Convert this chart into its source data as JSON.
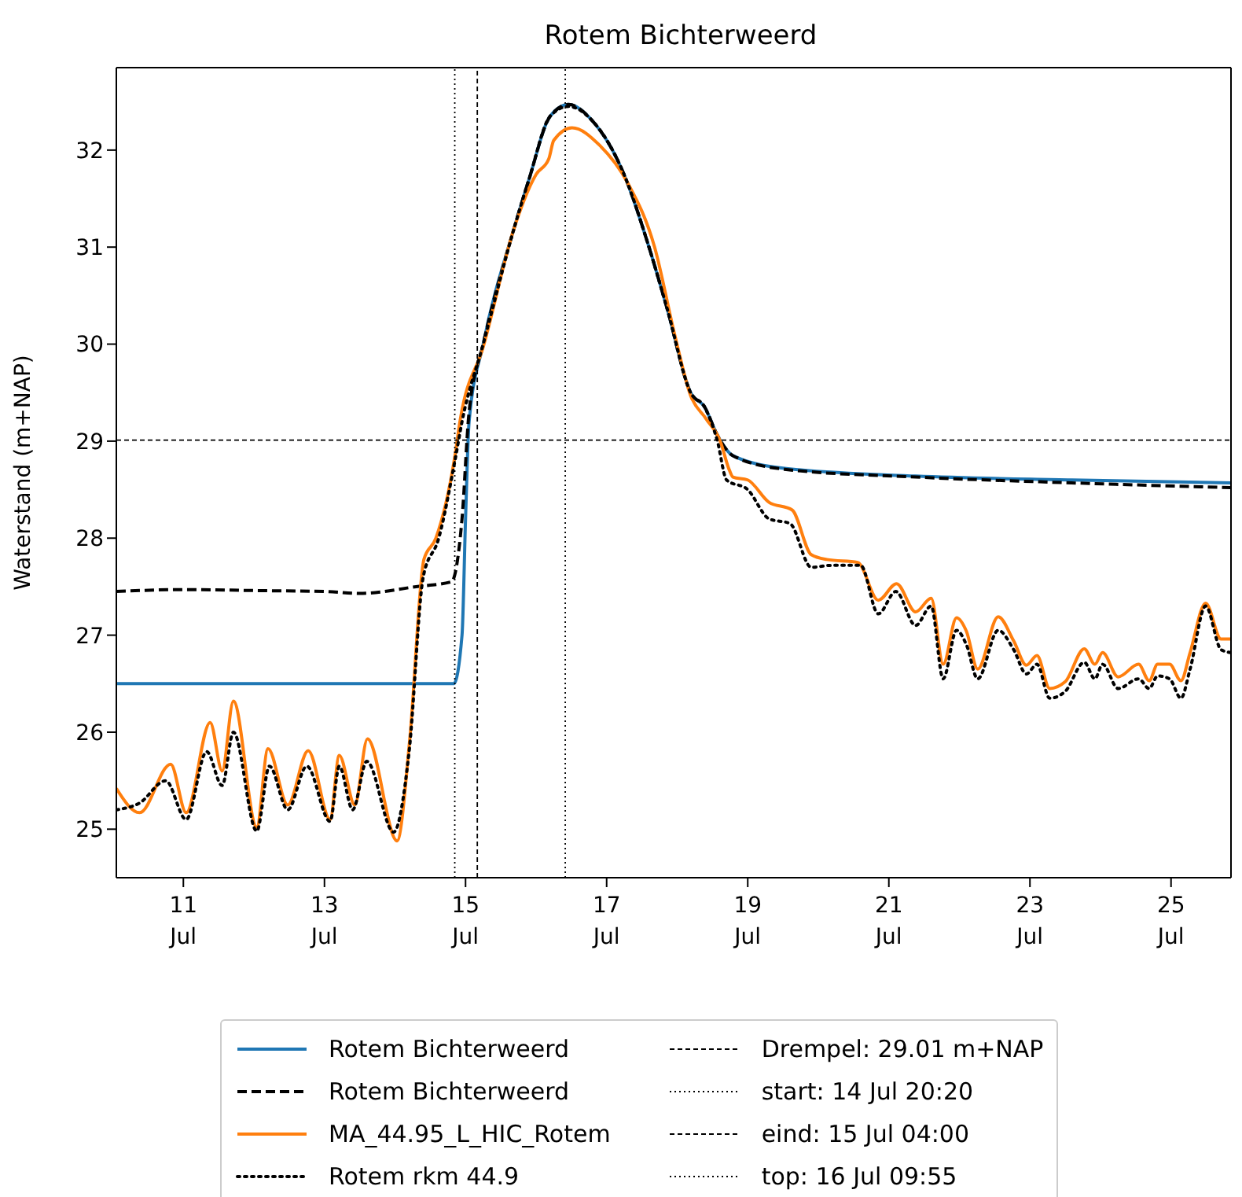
{
  "chart_data": {
    "type": "line",
    "title": "Rotem Bichterweerd",
    "ylabel": "Waterstand (m+NAP)",
    "xlim": [
      "--07-10T01:12",
      "--07-25T20:24"
    ],
    "ylim": [
      24.5,
      32.85
    ],
    "xticks": [
      {
        "value": "--07-11",
        "label": "11\nJul"
      },
      {
        "value": "--07-13",
        "label": "13\nJul"
      },
      {
        "value": "--07-15",
        "label": "15\nJul"
      },
      {
        "value": "--07-17",
        "label": "17\nJul"
      },
      {
        "value": "--07-19",
        "label": "19\nJul"
      },
      {
        "value": "--07-21",
        "label": "21\nJul"
      },
      {
        "value": "--07-23",
        "label": "23\nJul"
      },
      {
        "value": "--07-25",
        "label": "25\nJul"
      }
    ],
    "yticks": [
      25,
      26,
      27,
      28,
      29,
      30,
      31,
      32
    ],
    "grid": false,
    "legend": "bottom",
    "series": [
      {
        "name": "Rotem Bichterweerd",
        "color": "#1f77b4",
        "line_style": "solid",
        "x": [
          "--07-10T01:12",
          "--07-14T20:00",
          "--07-14T22:48",
          "--07-15T00:00",
          "--07-15T01:12",
          "--07-15T06:00",
          "--07-15T16:34",
          "--07-15T21:36",
          "--07-16T04:48",
          "--07-16T11:02",
          "--07-16T19:12",
          "--07-17T05:46",
          "--07-17T14:24",
          "--07-17T20:38",
          "--07-18T04:34",
          "--07-18T09:22",
          "--07-18T13:41",
          "--07-18T18:58",
          "--07-19T12:29",
          "--07-21T09:07",
          "--07-23T14:10",
          "--07-25T20:24"
        ],
        "values": [
          26.5,
          26.5,
          27.0,
          28.2,
          29.2,
          30.0,
          31.2,
          31.7,
          32.35,
          32.47,
          32.3,
          31.76,
          31.0,
          30.36,
          29.5,
          29.35,
          29.06,
          28.85,
          28.72,
          28.64,
          28.6,
          28.57
        ]
      },
      {
        "name": "Rotem Bichterweerd",
        "color": "#000000",
        "line_style": "dashed",
        "x": [
          "--07-10T01:12",
          "--07-11T00:00",
          "--07-12T00:00",
          "--07-13T00:00",
          "--07-13T12:00",
          "--07-14T07:12",
          "--07-14T19:12",
          "--07-14T22:48",
          "--07-15T01:12",
          "--07-15T06:00",
          "--07-15T16:34",
          "--07-15T21:36",
          "--07-16T04:48",
          "--07-16T11:02",
          "--07-16T19:12",
          "--07-17T05:46",
          "--07-17T14:24",
          "--07-17T20:38",
          "--07-18T04:34",
          "--07-18T09:22",
          "--07-18T13:41",
          "--07-18T18:58",
          "--07-19T12:29",
          "--07-21T09:07",
          "--07-23T14:10",
          "--07-25T20:24"
        ],
        "values": [
          27.45,
          27.47,
          27.46,
          27.45,
          27.43,
          27.5,
          27.55,
          28.2,
          29.3,
          30.0,
          31.2,
          31.7,
          32.35,
          32.47,
          32.3,
          31.76,
          31.0,
          30.36,
          29.5,
          29.35,
          29.06,
          28.85,
          28.71,
          28.63,
          28.57,
          28.52
        ]
      },
      {
        "name": "MA_44.95_L_HIC_Rotem",
        "color": "#ff7f0e",
        "line_style": "solid",
        "x": [
          "--07-10T01:12",
          "--07-10T09:07",
          "--07-10T19:41",
          "--07-11T00:58",
          "--07-11T09:07",
          "--07-11T13:12",
          "--07-11T17:02",
          "--07-12T00:58",
          "--07-12T04:48",
          "--07-12T11:31",
          "--07-12T18:29",
          "--07-13T01:55",
          "--07-13T05:02",
          "--07-13T10:19",
          "--07-13T14:38",
          "--07-14T00:43",
          "--07-14T05:02",
          "--07-14T09:50",
          "--07-14T13:55",
          "--07-14T20:24",
          "--07-14T22:05",
          "--07-15T06:00",
          "--07-15T16:34",
          "--07-16T00:00",
          "--07-16T04:19",
          "--07-16T06:00",
          "--07-16T12:14",
          "--07-16T21:36",
          "--07-17T07:12",
          "--07-17T16:19",
          "--07-17T23:17",
          "--07-18T04:34",
          "--07-18T09:50",
          "--07-18T14:38",
          "--07-18T17:46",
          "--07-18T18:58",
          "--07-19T00:00",
          "--07-19T07:12",
          "--07-19T15:07",
          "--07-19T21:36",
          "--07-20T02:53",
          "--07-20T13:26",
          "--07-20T20:24",
          "--07-21T02:38",
          "--07-21T09:07",
          "--07-21T14:24",
          "--07-21T18:29",
          "--07-21T23:02",
          "--07-22T02:24",
          "--07-22T06:14",
          "--07-22T13:12",
          "--07-22T18:29",
          "--07-22T22:48",
          "--07-23T02:24",
          "--07-23T06:43",
          "--07-23T12:00",
          "--07-23T18:29",
          "--07-23T22:05",
          "--07-24T00:43",
          "--07-24T06:00",
          "--07-24T12:58",
          "--07-24T16:34",
          "--07-24T19:26",
          "--07-24T23:31",
          "--07-25T03:22",
          "--07-25T06:29",
          "--07-25T11:46",
          "--07-25T17:02",
          "--07-25T20:24"
        ],
        "values": [
          25.42,
          25.17,
          25.67,
          25.17,
          26.1,
          25.6,
          26.32,
          25.02,
          25.83,
          25.25,
          25.81,
          25.1,
          25.76,
          25.25,
          25.93,
          24.88,
          25.93,
          27.78,
          28.0,
          28.85,
          29.2,
          29.97,
          31.2,
          31.75,
          31.91,
          32.1,
          32.23,
          32.05,
          31.66,
          31.0,
          30.08,
          29.47,
          29.23,
          29.0,
          28.7,
          28.63,
          28.6,
          28.37,
          28.29,
          27.83,
          27.78,
          27.75,
          27.36,
          27.53,
          27.24,
          27.38,
          26.7,
          27.18,
          27.04,
          26.65,
          27.19,
          26.94,
          26.69,
          26.79,
          26.45,
          26.52,
          26.86,
          26.7,
          26.82,
          26.57,
          26.7,
          26.53,
          26.7,
          26.7,
          26.53,
          26.82,
          27.33,
          26.96,
          26.96
        ]
      },
      {
        "name": "Rotem rkm 44.9",
        "color": "#000000",
        "line_style": "dotted",
        "x": [
          "--07-10T01:12",
          "--07-10T09:07",
          "--07-10T18:00",
          "--07-11T00:58",
          "--07-11T07:55",
          "--07-11T13:12",
          "--07-11T17:02",
          "--07-12T00:58",
          "--07-12T05:17",
          "--07-12T11:31",
          "--07-12T18:00",
          "--07-13T01:55",
          "--07-13T05:02",
          "--07-13T09:36",
          "--07-13T14:24",
          "--07-13T23:31",
          "--07-14T04:48",
          "--07-14T09:36",
          "--07-14T14:53",
          "--07-14T20:24",
          "--07-14T22:48",
          "--07-15T06:00",
          "--07-15T16:34",
          "--07-15T21:36",
          "--07-16T04:48",
          "--07-16T11:02",
          "--07-16T19:12",
          "--07-17T05:46",
          "--07-17T14:24",
          "--07-17T20:38",
          "--07-18T04:34",
          "--07-18T09:22",
          "--07-18T13:41",
          "--07-18T16:48",
          "--07-19T00:00",
          "--07-19T07:12",
          "--07-19T14:24",
          "--07-19T21:36",
          "--07-20T04:48",
          "--07-20T14:24",
          "--07-20T20:24",
          "--07-21T02:24",
          "--07-21T09:07",
          "--07-21T14:24",
          "--07-21T18:29",
          "--07-21T23:02",
          "--07-22T02:24",
          "--07-22T06:14",
          "--07-22T13:12",
          "--07-22T18:29",
          "--07-22T22:48",
          "--07-23T02:24",
          "--07-23T06:43",
          "--07-23T12:00",
          "--07-23T18:29",
          "--07-23T22:05",
          "--07-24T00:43",
          "--07-24T06:00",
          "--07-24T12:58",
          "--07-24T16:34",
          "--07-24T19:26",
          "--07-24T23:31",
          "--07-25T03:22",
          "--07-25T06:29",
          "--07-25T11:46",
          "--07-25T17:02",
          "--07-25T20:24"
        ],
        "values": [
          25.2,
          25.27,
          25.5,
          25.1,
          25.8,
          25.45,
          26.0,
          24.98,
          25.65,
          25.2,
          25.65,
          25.08,
          25.65,
          25.2,
          25.7,
          24.97,
          25.8,
          27.6,
          28.0,
          28.8,
          29.2,
          30.0,
          31.2,
          31.7,
          32.35,
          32.45,
          32.3,
          31.76,
          31.0,
          30.36,
          29.5,
          29.35,
          29.0,
          28.6,
          28.5,
          28.2,
          28.15,
          27.7,
          27.72,
          27.72,
          27.22,
          27.45,
          27.1,
          27.3,
          26.55,
          27.05,
          26.9,
          26.55,
          27.05,
          26.85,
          26.6,
          26.7,
          26.35,
          26.42,
          26.72,
          26.55,
          26.7,
          26.45,
          26.55,
          26.45,
          26.58,
          26.55,
          26.35,
          26.65,
          27.3,
          26.85,
          26.82
        ]
      }
    ],
    "ref_lines": [
      {
        "axis": "y",
        "value": 29.01,
        "label": "Drempel: 29.01 m+NAP",
        "color": "#000000",
        "line_style": "dashed"
      },
      {
        "axis": "x",
        "value": "--07-14T20:20",
        "label": "start: 14 Jul 20:20",
        "color": "#000000",
        "line_style": "dotted"
      },
      {
        "axis": "x",
        "value": "--07-15T04:00",
        "label": "eind: 15 Jul 04:00",
        "color": "#000000",
        "line_style": "dashed"
      },
      {
        "axis": "x",
        "value": "--07-16T09:55",
        "label": "top: 16 Jul 09:55",
        "color": "#000000",
        "line_style": "dotted"
      }
    ]
  }
}
